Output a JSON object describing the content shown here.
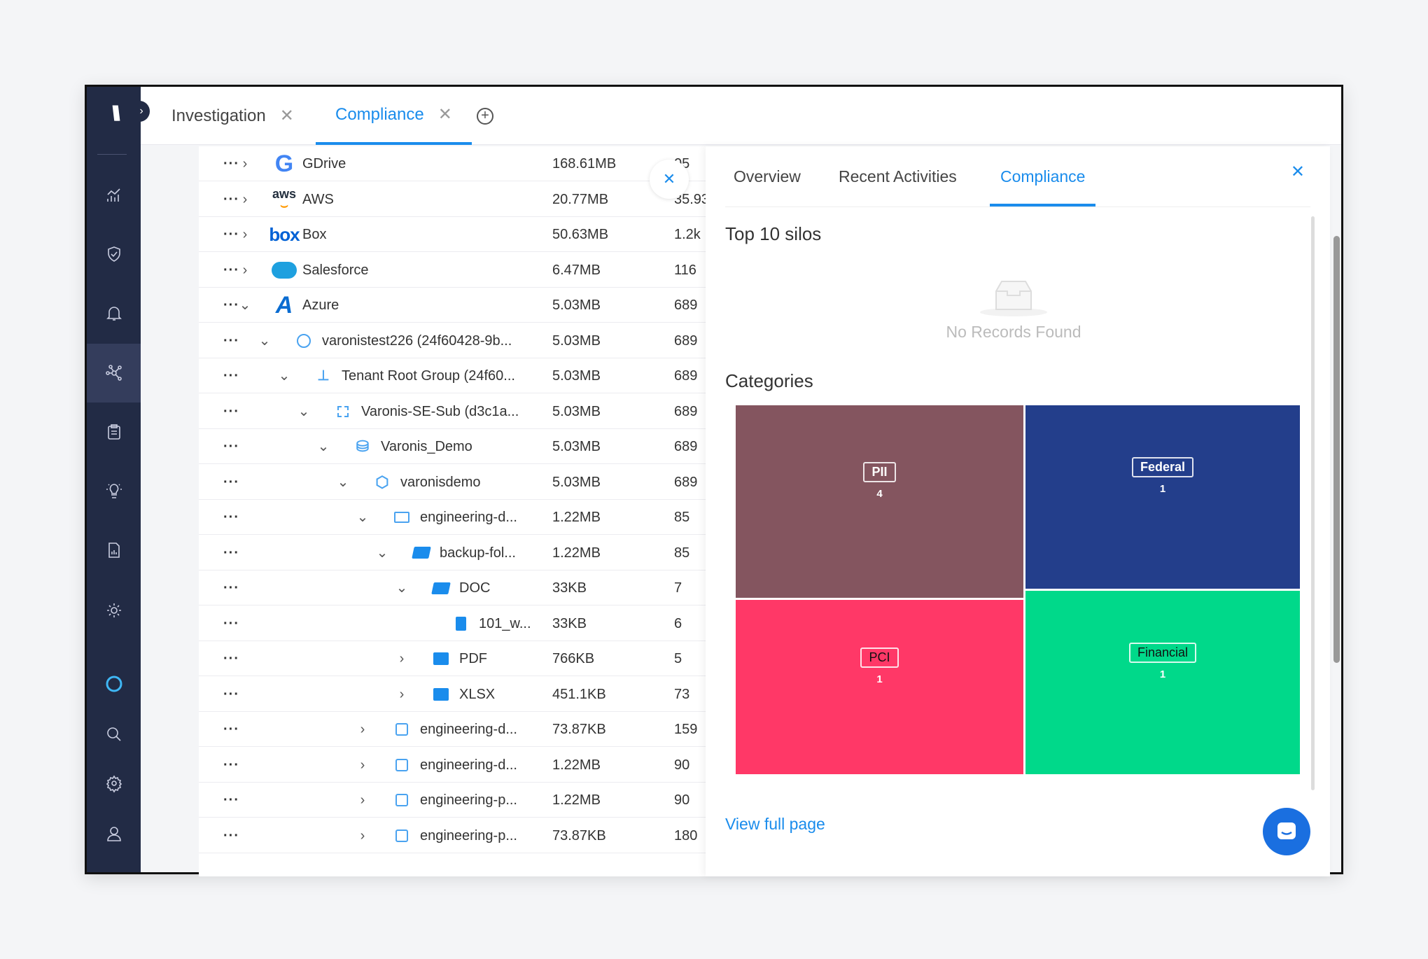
{
  "tabs": [
    {
      "label": "Investigation",
      "active": false
    },
    {
      "label": "Compliance",
      "active": true
    }
  ],
  "sidebar": {
    "logo": "W",
    "items": [
      "analytics-icon",
      "shield-icon",
      "bell-icon",
      "network-icon",
      "clipboard-icon",
      "lightbulb-icon",
      "report-icon",
      "sun-icon",
      "status-ring-icon",
      "search-icon",
      "gear-icon",
      "user-icon"
    ],
    "active_index": 3
  },
  "rows": [
    {
      "name": "GDrive",
      "size": "168.61MB",
      "count": "05",
      "level": 0,
      "state": "collapsed",
      "icon": "google-drive-icon"
    },
    {
      "name": "AWS",
      "size": "20.77MB",
      "count": "35.93",
      "level": 0,
      "state": "collapsed",
      "icon": "aws-icon"
    },
    {
      "name": "Box",
      "size": "50.63MB",
      "count": "1.2k",
      "level": 0,
      "state": "collapsed",
      "icon": "box-icon"
    },
    {
      "name": "Salesforce",
      "size": "6.47MB",
      "count": "116",
      "level": 0,
      "state": "collapsed",
      "icon": "salesforce-icon"
    },
    {
      "name": "Azure",
      "size": "5.03MB",
      "count": "689",
      "level": 0,
      "state": "expanded",
      "icon": "azure-icon"
    },
    {
      "name": "varonistest226 (24f60428-9b...",
      "size": "5.03MB",
      "count": "689",
      "level": 1,
      "state": "expanded",
      "icon": "user-circle-icon"
    },
    {
      "name": "Tenant Root Group (24f60...",
      "size": "5.03MB",
      "count": "689",
      "level": 2,
      "state": "expanded",
      "icon": "hierarchy-icon"
    },
    {
      "name": "Varonis-SE-Sub (d3c1a...",
      "size": "5.03MB",
      "count": "689",
      "level": 3,
      "state": "expanded",
      "icon": "subscription-icon"
    },
    {
      "name": "Varonis_Demo",
      "size": "5.03MB",
      "count": "689",
      "level": 4,
      "state": "expanded",
      "icon": "resource-group-icon"
    },
    {
      "name": "varonisdemo",
      "size": "5.03MB",
      "count": "689",
      "level": 5,
      "state": "expanded",
      "icon": "cube-icon"
    },
    {
      "name": "engineering-d...",
      "size": "1.22MB",
      "count": "85",
      "level": 6,
      "state": "expanded",
      "icon": "container-open-icon"
    },
    {
      "name": "backup-fol...",
      "size": "1.22MB",
      "count": "85",
      "level": 7,
      "state": "expanded",
      "icon": "folder-open-icon"
    },
    {
      "name": "DOC",
      "size": "33KB",
      "count": "7",
      "level": 8,
      "state": "expanded",
      "icon": "folder-open-icon"
    },
    {
      "name": "101_w...",
      "size": "33KB",
      "count": "6",
      "level": 9,
      "state": "none",
      "icon": "file-icon"
    },
    {
      "name": "PDF",
      "size": "766KB",
      "count": "5",
      "level": 8,
      "state": "collapsed",
      "icon": "folder-icon"
    },
    {
      "name": "XLSX",
      "size": "451.1KB",
      "count": "73",
      "level": 8,
      "state": "collapsed",
      "icon": "folder-icon"
    },
    {
      "name": "engineering-d...",
      "size": "73.87KB",
      "count": "159",
      "level": 6,
      "state": "collapsed",
      "icon": "container-icon"
    },
    {
      "name": "engineering-d...",
      "size": "1.22MB",
      "count": "90",
      "level": 6,
      "state": "collapsed",
      "icon": "container-icon"
    },
    {
      "name": "engineering-p...",
      "size": "1.22MB",
      "count": "90",
      "level": 6,
      "state": "collapsed",
      "icon": "container-icon"
    },
    {
      "name": "engineering-p...",
      "size": "73.87KB",
      "count": "180",
      "level": 6,
      "state": "collapsed",
      "icon": "container-icon"
    }
  ],
  "panel": {
    "tabs": [
      {
        "label": "Overview"
      },
      {
        "label": "Recent Activities"
      },
      {
        "label": "Compliance"
      }
    ],
    "active_tab": "Compliance",
    "silos_title": "Top 10 silos",
    "empty_text": "No Records Found",
    "categories_title": "Categories",
    "view_full_page": "View full page"
  },
  "chart_data": {
    "type": "treemap",
    "categories": [
      "PII",
      "Federal",
      "PCI",
      "Financial"
    ],
    "values": [
      4,
      1,
      1,
      1
    ],
    "colors": [
      "#84555f",
      "#233e8b",
      "#ff3867",
      "#00d98a"
    ]
  },
  "accent": "#1a8cec"
}
